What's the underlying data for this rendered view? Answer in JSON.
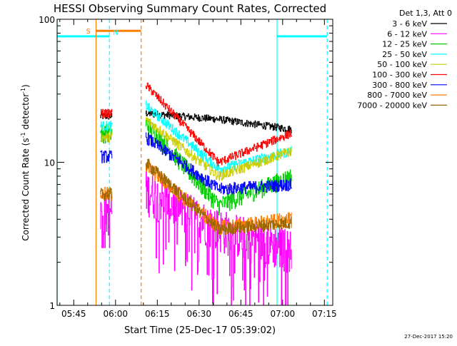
{
  "chart_data": {
    "type": "line",
    "title": "HESSI Observing Summary Count Rates, Corrected",
    "xlabel": "Start Time (25-Dec-17 05:39:02)",
    "ylabel": "Corrected Count Rate (s",
    "ylabel_sup1": "-1",
    "ylabel_mid": " detector",
    "ylabel_sup2": "-1",
    "ylabel_end": ")",
    "y_scale": "log",
    "ylim": [
      1,
      100
    ],
    "y_ticks": [
      {
        "value": 1,
        "label": "1"
      },
      {
        "value": 10,
        "label": "10"
      },
      {
        "value": 100,
        "label": "100"
      }
    ],
    "xlim_minutes": [
      339.03,
      438.0
    ],
    "x_ticks": [
      {
        "minute": 345,
        "label": "05:45"
      },
      {
        "minute": 360,
        "label": "06:00"
      },
      {
        "minute": 375,
        "label": "06:15"
      },
      {
        "minute": 390,
        "label": "06:30"
      },
      {
        "minute": 405,
        "label": "06:45"
      },
      {
        "minute": 420,
        "label": "07:00"
      },
      {
        "minute": 435,
        "label": "07:15"
      }
    ],
    "legend": {
      "placement": "right",
      "header": "Det 1,3, Att 0",
      "entries": [
        {
          "label": "3 - 6 keV",
          "color": "#000000"
        },
        {
          "label": "6 - 12 keV",
          "color": "#ff00ff"
        },
        {
          "label": "12 - 25 keV",
          "color": "#00cc00"
        },
        {
          "label": "25 - 50 keV",
          "color": "#00ffff"
        },
        {
          "label": "50 - 100 keV",
          "color": "#cccc00"
        },
        {
          "label": "100 - 300 keV",
          "color": "#ff0000"
        },
        {
          "label": "300 - 800 keV",
          "color": "#0000ff"
        },
        {
          "label": "800 - 7000 keV",
          "color": "#ff8000"
        },
        {
          "label": "7000 - 20000 keV",
          "color": "#996600"
        }
      ]
    },
    "flags": {
      "saa": {
        "label": "S",
        "start_minute": 353.0,
        "end_minute": 369.2,
        "color": "#ff8000",
        "y_value": 83
      },
      "night": [
        {
          "label": "N",
          "start_minute": 339.03,
          "end_minute": 357.8,
          "color": "#00ffff",
          "y_value": 76
        },
        {
          "label": "",
          "start_minute": 418.0,
          "end_minute": 436.0,
          "color": "#00ffff",
          "y_value": 76
        }
      ]
    },
    "markers": [
      {
        "minute": 339.03,
        "color": "#00ffff",
        "style": "solid"
      },
      {
        "minute": 353.0,
        "color": "#ff8000",
        "style": "solid"
      },
      {
        "minute": 357.8,
        "color": "#00ffff",
        "style": "dashed"
      },
      {
        "minute": 369.2,
        "color": "#ff8000",
        "style": "dashed"
      },
      {
        "minute": 418.0,
        "color": "#00ffff",
        "style": "solid"
      },
      {
        "minute": 436.0,
        "color": "#00ffff",
        "style": "dashed"
      }
    ],
    "segments": [
      {
        "start_minute": 354.5,
        "end_minute": 358.7
      },
      {
        "start_minute": 370.8,
        "end_minute": 423.2
      }
    ],
    "series": [
      {
        "color": "#000000",
        "seg1": [
          21,
          21
        ],
        "seg2_start": 22,
        "seg2_mid": 20,
        "seg2_end": 17,
        "noise": 0.06
      },
      {
        "color": "#ff00ff",
        "seg1": [
          4.6,
          4.6
        ],
        "seg2_start": 6.5,
        "seg2_mid": 3.5,
        "seg2_end": 2.5,
        "noise": 0.35
      },
      {
        "color": "#00cc00",
        "seg1": [
          16,
          16
        ],
        "seg2_start": 19,
        "seg2_mid": 5,
        "seg2_end": 8,
        "noise": 0.15
      },
      {
        "color": "#00ffff",
        "seg1": [
          18,
          18
        ],
        "seg2_start": 25,
        "seg2_mid": 9,
        "seg2_end": 12,
        "noise": 0.08
      },
      {
        "color": "#cccc00",
        "seg1": [
          15,
          15
        ],
        "seg2_start": 20,
        "seg2_mid": 8,
        "seg2_end": 12,
        "noise": 0.08
      },
      {
        "color": "#ff0000",
        "seg1": [
          22,
          22
        ],
        "seg2_start": 35,
        "seg2_mid": 10,
        "seg2_end": 16,
        "noise": 0.07
      },
      {
        "color": "#0000ff",
        "seg1": [
          11,
          11
        ],
        "seg2_start": 15,
        "seg2_mid": 6.5,
        "seg2_end": 7,
        "noise": 0.1
      },
      {
        "color": "#ff8000",
        "seg1": [
          6,
          6
        ],
        "seg2_start": 9.5,
        "seg2_mid": 3.5,
        "seg2_end": 4,
        "noise": 0.12
      },
      {
        "color": "#996600",
        "seg1": [
          6,
          6
        ],
        "seg2_start": 10,
        "seg2_mid": 3.4,
        "seg2_end": 3.8,
        "noise": 0.1
      }
    ]
  },
  "footer": {
    "date_stamp": "27-Dec-2017 15:20"
  }
}
